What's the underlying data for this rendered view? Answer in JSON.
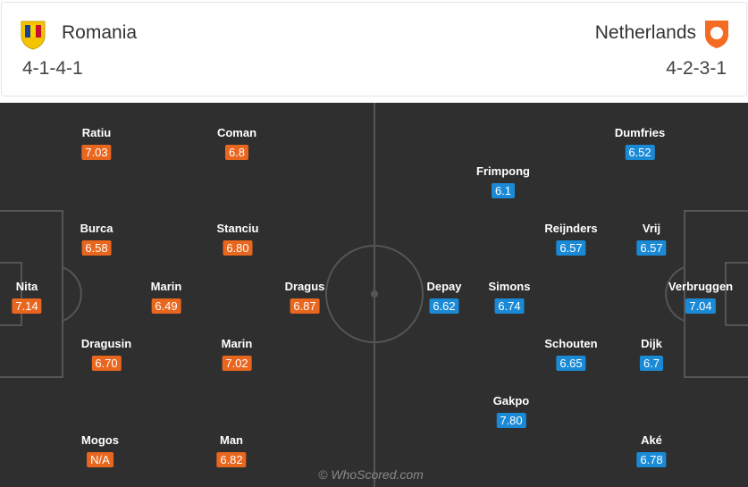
{
  "home": {
    "name": "Romania",
    "formation": "4-1-4-1",
    "players": [
      {
        "name": "Nita",
        "rating": "7.14"
      },
      {
        "name": "Ratiu",
        "rating": "7.03"
      },
      {
        "name": "Burca",
        "rating": "6.58"
      },
      {
        "name": "Dragusin",
        "rating": "6.70"
      },
      {
        "name": "Mogos",
        "rating": "N/A"
      },
      {
        "name": "Marin",
        "rating": "6.49"
      },
      {
        "name": "Coman",
        "rating": "6.8"
      },
      {
        "name": "Stanciu",
        "rating": "6.80"
      },
      {
        "name": "Marin",
        "rating": "7.02"
      },
      {
        "name": "Man",
        "rating": "6.82"
      },
      {
        "name": "Dragus",
        "rating": "6.87"
      }
    ]
  },
  "away": {
    "name": "Netherlands",
    "formation": "4-2-3-1",
    "players": [
      {
        "name": "Verbruggen",
        "rating": "7.04"
      },
      {
        "name": "Dumfries",
        "rating": "6.52"
      },
      {
        "name": "Vrij",
        "rating": "6.57"
      },
      {
        "name": "Dijk",
        "rating": "6.7"
      },
      {
        "name": "Aké",
        "rating": "6.78"
      },
      {
        "name": "Reijnders",
        "rating": "6.57"
      },
      {
        "name": "Schouten",
        "rating": "6.65"
      },
      {
        "name": "Frimpong",
        "rating": "6.1"
      },
      {
        "name": "Simons",
        "rating": "6.74"
      },
      {
        "name": "Gakpo",
        "rating": "7.80"
      },
      {
        "name": "Depay",
        "rating": "6.62"
      }
    ]
  },
  "watermark": "© WhoScored.com"
}
